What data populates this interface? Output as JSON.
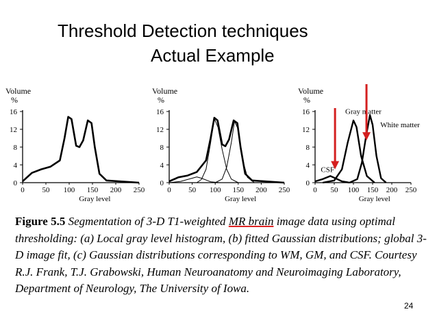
{
  "slide": {
    "title_line1": "Threshold Detection techniques",
    "title_line2": "Actual Example",
    "page_number": "24"
  },
  "caption": {
    "figure_label": "Figure 5.5",
    "text_part1": "Segmentation of 3-D T1-weighted ",
    "text_highlight": "MR brain",
    "text_part2": " image data using optimal thresholding: (a) Local gray level histogram, (b) fitted Gaussian distributions; global 3-D image fit, (c) Gaussian distributions corresponding to WM, GM, and CSF. Courtesy R.J. Frank, T.J. Grabowski, Human Neuroanatomy and Neuroimaging Laboratory, Department of Neurology, The University of Iowa."
  },
  "colors": {
    "arrow": "#d41f1f",
    "underline": "#d22222"
  },
  "chart_data": [
    {
      "type": "line",
      "ylabel": "Volume\n%",
      "xlabel": "Gray level",
      "xlim": [
        0,
        250
      ],
      "ylim": [
        0,
        16
      ],
      "yticks": [
        "0",
        "4",
        "8",
        "12",
        "16"
      ],
      "xticks": [
        "0",
        "50",
        "100",
        "150",
        "200",
        "250"
      ],
      "series": [
        {
          "values": [
            [
              0,
              0.3
            ],
            [
              20,
              2.2
            ],
            [
              40,
              3.0
            ],
            [
              60,
              3.6
            ],
            [
              80,
              5.0
            ],
            [
              90,
              10.0
            ],
            [
              98,
              14.8
            ],
            [
              105,
              14.3
            ],
            [
              115,
              8.3
            ],
            [
              122,
              8.0
            ],
            [
              130,
              9.5
            ],
            [
              140,
              14.0
            ],
            [
              148,
              13.4
            ],
            [
              155,
              8.0
            ],
            [
              165,
              2.0
            ],
            [
              180,
              0.5
            ],
            [
              250,
              0
            ]
          ]
        }
      ]
    },
    {
      "type": "line",
      "ylabel": "Volume\n%",
      "xlabel": "Gray level",
      "xlim": [
        0,
        250
      ],
      "ylim": [
        0,
        16
      ],
      "yticks": [
        "0",
        "4",
        "8",
        "12",
        "16"
      ],
      "xticks": [
        "0",
        "50",
        "100",
        "150",
        "200",
        "250"
      ],
      "series": [
        {
          "values": [
            [
              0,
              0.3
            ],
            [
              20,
              1.2
            ],
            [
              40,
              1.6
            ],
            [
              60,
              2.4
            ],
            [
              80,
              5.0
            ],
            [
              90,
              10.0
            ],
            [
              98,
              14.6
            ],
            [
              105,
              14.0
            ],
            [
              115,
              8.6
            ],
            [
              122,
              8.2
            ],
            [
              130,
              9.7
            ],
            [
              140,
              14.0
            ],
            [
              148,
              13.4
            ],
            [
              155,
              8.0
            ],
            [
              165,
              2.0
            ],
            [
              180,
              0.5
            ],
            [
              250,
              0
            ]
          ]
        },
        {
          "values": [
            [
              0,
              0
            ],
            [
              25,
              0.3
            ],
            [
              50,
              1.0
            ],
            [
              60,
              1.3
            ],
            [
              70,
              1.0
            ],
            [
              90,
              0.2
            ],
            [
              110,
              0
            ]
          ]
        },
        {
          "values": [
            [
              60,
              0
            ],
            [
              70,
              0.7
            ],
            [
              80,
              3.0
            ],
            [
              90,
              9.0
            ],
            [
              98,
              14.4
            ],
            [
              106,
              12.5
            ],
            [
              115,
              7.5
            ],
            [
              125,
              3.0
            ],
            [
              135,
              0.8
            ],
            [
              150,
              0
            ]
          ]
        },
        {
          "values": [
            [
              100,
              0
            ],
            [
              115,
              0.8
            ],
            [
              125,
              3.5
            ],
            [
              135,
              9.0
            ],
            [
              142,
              13.8
            ],
            [
              150,
              12.0
            ],
            [
              160,
              5.0
            ],
            [
              170,
              1.2
            ],
            [
              185,
              0
            ]
          ]
        }
      ]
    },
    {
      "type": "line",
      "ylabel": "Volume\n%",
      "xlabel": "Gray level",
      "xlim": [
        0,
        250
      ],
      "ylim": [
        0,
        16
      ],
      "yticks": [
        "0",
        "4",
        "8",
        "12",
        "16"
      ],
      "xticks": [
        "0",
        "50",
        "100",
        "150",
        "200",
        "250"
      ],
      "annotations": [
        "CSF",
        "Gray matter",
        "White matter"
      ],
      "series": [
        {
          "values": [
            [
              0,
              0.3
            ],
            [
              20,
              0.8
            ],
            [
              40,
              1.5
            ],
            [
              55,
              0.9
            ],
            [
              70,
              0.3
            ],
            [
              90,
              0
            ]
          ]
        },
        {
          "values": [
            [
              20,
              0
            ],
            [
              50,
              0.5
            ],
            [
              70,
              3.0
            ],
            [
              85,
              9.0
            ],
            [
              100,
              14.0
            ],
            [
              108,
              12.5
            ],
            [
              120,
              6.0
            ],
            [
              135,
              1.5
            ],
            [
              155,
              0
            ]
          ]
        },
        {
          "values": [
            [
              90,
              0
            ],
            [
              110,
              0.8
            ],
            [
              122,
              4.5
            ],
            [
              133,
              10.5
            ],
            [
              143,
              15.2
            ],
            [
              150,
              13.0
            ],
            [
              160,
              6.0
            ],
            [
              172,
              1.0
            ],
            [
              185,
              0
            ]
          ]
        }
      ]
    }
  ]
}
